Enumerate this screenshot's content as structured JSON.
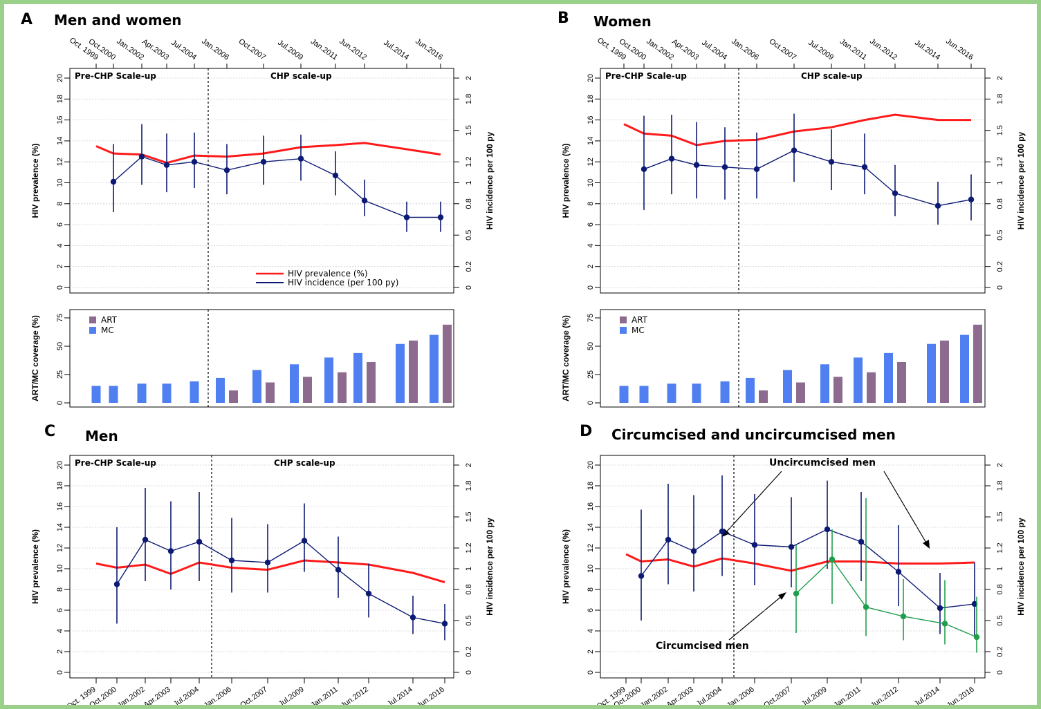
{
  "colors": {
    "prevalence": "#ff1a1a",
    "incidence": "#0d1a73",
    "circumcised": "#1f9e4e",
    "art": "#8d6b8e",
    "mc": "#4f7ff0",
    "border": "#9bd08a"
  },
  "phases": {
    "pre": "Pre-CHP Scale-up",
    "post": "CHP scale-up"
  },
  "legend_prevalence": "HIV prevalence (%)",
  "legend_incidence": "HIV incidence (per 100 py)",
  "labels_ylabel_left": "HIV prevalence (%)",
  "labels_ylabel_right": "HIV incidence per 100 py",
  "labels_coverage": "ART/MC coverage (%)",
  "labels_art": "ART",
  "labels_mc": "MC",
  "panels": [
    {
      "letter": "A",
      "title": "Men and women"
    },
    {
      "letter": "B",
      "title": "Women"
    },
    {
      "letter": "C",
      "title": "Men"
    },
    {
      "letter": "D",
      "title": "Circumcised and uncircumcised men"
    }
  ],
  "annotations": {
    "uncircumcised": "Uncircumcised men",
    "circumcised": "Circumcised men"
  },
  "chart_data": [
    {
      "panel": "A",
      "type": "line",
      "rounds": [
        "Oct. 1999",
        "Oct.2000",
        "Jan.2002",
        "Apr.2003",
        "Jul.2004",
        "Jan.2006",
        "Oct.2007",
        "Jul.2009",
        "Jan.2011",
        "Jun.2012",
        "Jul.2014",
        "Jun.2016"
      ],
      "ylim": [
        0,
        20
      ],
      "y2ticks": [
        "0",
        "0.2",
        "0.5",
        "0.8",
        "1",
        "1.2",
        "1.5",
        "1.8",
        "2"
      ],
      "series": [
        {
          "name": "HIV prevalence (%)",
          "values": [
            13.5,
            12.8,
            12.7,
            11.9,
            12.6,
            12.5,
            12.8,
            13.4,
            13.6,
            13.8,
            13.2,
            12.7
          ]
        },
        {
          "name": "HIV incidence (per 100 py)",
          "values": [
            null,
            1.01,
            1.25,
            1.17,
            1.2,
            1.12,
            1.2,
            1.23,
            1.07,
            0.83,
            0.67,
            0.67
          ],
          "lower": [
            null,
            0.72,
            0.98,
            0.91,
            0.95,
            0.89,
            0.98,
            1.02,
            0.88,
            0.68,
            0.53,
            0.53
          ],
          "upper": [
            null,
            1.37,
            1.56,
            1.47,
            1.48,
            1.37,
            1.45,
            1.46,
            1.3,
            1.03,
            0.82,
            0.82
          ]
        }
      ]
    },
    {
      "panel": "A-coverage",
      "type": "bar",
      "ylim": [
        0,
        75
      ],
      "yticks": [
        0,
        25,
        50,
        75
      ],
      "series": [
        {
          "name": "MC",
          "values": [
            15,
            15,
            17,
            17,
            19,
            22,
            29,
            34,
            40,
            44,
            52,
            60
          ]
        },
        {
          "name": "ART",
          "values": [
            null,
            null,
            null,
            null,
            null,
            11,
            18,
            23,
            27,
            36,
            55,
            69
          ]
        }
      ]
    },
    {
      "panel": "B",
      "type": "line",
      "rounds": [
        "Oct. 1999",
        "Oct.2000",
        "Jan.2002",
        "Apr.2003",
        "Jul.2004",
        "Jan.2006",
        "Oct.2007",
        "Jul.2009",
        "Jan.2011",
        "Jun.2012",
        "Jul.2014",
        "Jun.2016"
      ],
      "ylim": [
        0,
        20
      ],
      "y2ticks": [
        "0",
        "0.2",
        "0.5",
        "0.8",
        "1",
        "1.2",
        "1.5",
        "1.8",
        "2"
      ],
      "series": [
        {
          "name": "HIV prevalence (%)",
          "values": [
            15.6,
            14.7,
            14.5,
            13.6,
            14.0,
            14.1,
            14.9,
            15.3,
            16.0,
            16.5,
            16.0,
            16.0
          ]
        },
        {
          "name": "HIV incidence (per 100 py)",
          "values": [
            null,
            1.13,
            1.23,
            1.17,
            1.15,
            1.13,
            1.31,
            1.2,
            1.15,
            0.9,
            0.78,
            0.84
          ],
          "lower": [
            null,
            0.74,
            0.89,
            0.85,
            0.84,
            0.85,
            1.01,
            0.93,
            0.89,
            0.68,
            0.6,
            0.64
          ],
          "upper": [
            null,
            1.64,
            1.65,
            1.58,
            1.53,
            1.48,
            1.66,
            1.51,
            1.47,
            1.17,
            1.01,
            1.08
          ]
        }
      ]
    },
    {
      "panel": "B-coverage",
      "type": "bar",
      "ylim": [
        0,
        75
      ],
      "yticks": [
        0,
        25,
        50,
        75
      ],
      "series": [
        {
          "name": "MC",
          "values": [
            15,
            15,
            17,
            17,
            19,
            22,
            29,
            34,
            40,
            44,
            52,
            60
          ]
        },
        {
          "name": "ART",
          "values": [
            null,
            null,
            null,
            null,
            null,
            11,
            18,
            23,
            27,
            36,
            55,
            69
          ]
        }
      ]
    },
    {
      "panel": "C",
      "type": "line",
      "rounds": [
        "Oct. 1999",
        "Oct.2000",
        "Jan.2002",
        "Apr.2003",
        "Jul.2004",
        "Jan.2006",
        "Oct.2007",
        "Jul.2009",
        "Jan.2011",
        "Jun.2012",
        "Jul.2014",
        "Jun.2016"
      ],
      "ylim": [
        0,
        20
      ],
      "y2ticks": [
        "0",
        "0.2",
        "0.5",
        "0.8",
        "1",
        "1.2",
        "1.5",
        "1.8",
        "2"
      ],
      "series": [
        {
          "name": "HIV prevalence (%)",
          "values": [
            10.5,
            10.1,
            10.4,
            9.5,
            10.6,
            10.1,
            9.9,
            10.8,
            10.6,
            10.4,
            9.6,
            8.7
          ]
        },
        {
          "name": "HIV incidence (per 100 py)",
          "values": [
            null,
            0.85,
            1.28,
            1.17,
            1.26,
            1.08,
            1.06,
            1.27,
            0.99,
            0.76,
            0.53,
            0.47
          ],
          "lower": [
            null,
            0.47,
            0.88,
            0.8,
            0.88,
            0.77,
            0.77,
            0.97,
            0.72,
            0.53,
            0.37,
            0.31
          ],
          "upper": [
            null,
            1.4,
            1.78,
            1.65,
            1.74,
            1.49,
            1.43,
            1.63,
            1.31,
            1.05,
            0.74,
            0.66
          ]
        }
      ]
    },
    {
      "panel": "D",
      "type": "line",
      "rounds": [
        "Oct. 1999",
        "Oct.2000",
        "Jan.2002",
        "Apr.2003",
        "Jul.2004",
        "Jan.2006",
        "Oct.2007",
        "Jul.2009",
        "Jan.2011",
        "Jun.2012",
        "Jul.2014",
        "Jun.2016"
      ],
      "ylim": [
        0,
        20
      ],
      "y2ticks": [
        "0",
        "0.2",
        "0.5",
        "0.8",
        "1",
        "1.2",
        "1.5",
        "1.8",
        "2"
      ],
      "series": [
        {
          "name": "HIV prevalence (%)",
          "values": [
            11.4,
            10.7,
            10.9,
            10.2,
            11.0,
            10.5,
            9.8,
            10.7,
            10.7,
            10.5,
            10.5,
            10.6
          ]
        },
        {
          "name": "Uncircumcised men",
          "values": [
            null,
            0.93,
            1.28,
            1.17,
            1.36,
            1.23,
            1.21,
            1.38,
            1.26,
            0.97,
            0.62,
            0.66
          ],
          "lower": [
            null,
            0.5,
            0.85,
            0.78,
            0.93,
            0.84,
            0.82,
            1.0,
            0.88,
            0.64,
            0.37,
            0.34
          ],
          "upper": [
            null,
            1.57,
            1.82,
            1.71,
            1.9,
            1.72,
            1.69,
            1.85,
            1.74,
            1.42,
            0.96,
            1.06
          ]
        },
        {
          "name": "Circumcised men",
          "values": [
            null,
            null,
            null,
            null,
            null,
            null,
            0.76,
            1.09,
            0.63,
            0.54,
            0.47,
            0.34
          ],
          "lower": [
            null,
            null,
            null,
            null,
            null,
            null,
            0.38,
            0.66,
            0.35,
            0.31,
            0.27,
            0.19
          ],
          "upper": [
            null,
            null,
            null,
            null,
            null,
            null,
            1.23,
            1.38,
            1.68,
            0.9,
            0.89,
            0.73
          ]
        }
      ]
    }
  ]
}
